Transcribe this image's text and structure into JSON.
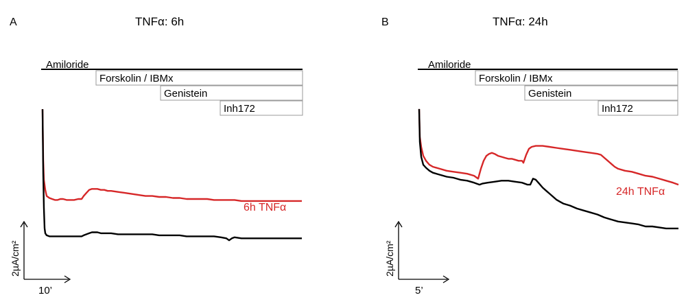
{
  "panels": [
    {
      "letter": "A",
      "title": "TNFα: 6h",
      "drugs": [
        "Amiloride",
        "Forskolin / IBMx",
        "Genistein",
        "Inh172"
      ],
      "scale": {
        "x_label": "10’",
        "y_label": "2µA/cm²"
      }
    },
    {
      "letter": "B",
      "title": "TNFα: 24h",
      "drugs": [
        "Amiloride",
        "Forskolin / IBMx",
        "Genistein",
        "Inh172"
      ],
      "scale": {
        "x_label": "5’",
        "y_label": "2µA/cm²"
      }
    }
  ],
  "colors": {
    "treated": "#d62728",
    "control": "#000000"
  },
  "chart_data": [
    {
      "type": "line",
      "title": "TNFα: 6h",
      "series": [
        {
          "name": "6h TNFα",
          "color": "#d62728",
          "points": [
            [
              0,
              138
            ],
            [
              1,
              87
            ],
            [
              2,
              68
            ],
            [
              4,
              58
            ],
            [
              6,
              52
            ],
            [
              10,
              50
            ],
            [
              14,
              49
            ],
            [
              18,
              48
            ],
            [
              22,
              48
            ],
            [
              26,
              49
            ],
            [
              30,
              49
            ],
            [
              35,
              48
            ],
            [
              40,
              48
            ],
            [
              46,
              48
            ],
            [
              52,
              49
            ],
            [
              57,
              49
            ],
            [
              60,
              52
            ],
            [
              64,
              55
            ],
            [
              68,
              58
            ],
            [
              72,
              59
            ],
            [
              76,
              59
            ],
            [
              80,
              59
            ],
            [
              85,
              58
            ],
            [
              90,
              58
            ],
            [
              95,
              57
            ],
            [
              100,
              57
            ],
            [
              110,
              56
            ],
            [
              120,
              55
            ],
            [
              130,
              54
            ],
            [
              140,
              53
            ],
            [
              150,
              52
            ],
            [
              160,
              52
            ],
            [
              170,
              51
            ],
            [
              180,
              51
            ],
            [
              190,
              50
            ],
            [
              200,
              50
            ],
            [
              210,
              49
            ],
            [
              220,
              49
            ],
            [
              230,
              49
            ],
            [
              240,
              49
            ],
            [
              250,
              48
            ],
            [
              260,
              48
            ],
            [
              270,
              48
            ],
            [
              280,
              48
            ],
            [
              290,
              47
            ],
            [
              300,
              47
            ],
            [
              310,
              47
            ],
            [
              320,
              47
            ],
            [
              330,
              47
            ],
            [
              340,
              47
            ],
            [
              350,
              47
            ],
            [
              360,
              47
            ],
            [
              370,
              47
            ],
            [
              378,
              47
            ]
          ]
        },
        {
          "name": "",
          "color": "#000000",
          "points": [
            [
              0,
              138
            ],
            [
              1,
              75
            ],
            [
              2,
              40
            ],
            [
              3,
              20
            ],
            [
              4,
              15
            ],
            [
              6,
              13
            ],
            [
              10,
              12
            ],
            [
              14,
              12
            ],
            [
              18,
              12
            ],
            [
              22,
              12
            ],
            [
              26,
              12
            ],
            [
              30,
              12
            ],
            [
              35,
              12
            ],
            [
              40,
              12
            ],
            [
              46,
              12
            ],
            [
              52,
              12
            ],
            [
              57,
              12
            ],
            [
              60,
              13
            ],
            [
              64,
              14
            ],
            [
              68,
              15
            ],
            [
              72,
              16
            ],
            [
              76,
              16
            ],
            [
              80,
              16
            ],
            [
              85,
              15
            ],
            [
              90,
              15
            ],
            [
              95,
              15
            ],
            [
              100,
              15
            ],
            [
              110,
              14
            ],
            [
              120,
              14
            ],
            [
              130,
              14
            ],
            [
              140,
              14
            ],
            [
              150,
              14
            ],
            [
              160,
              14
            ],
            [
              170,
              13
            ],
            [
              180,
              13
            ],
            [
              190,
              13
            ],
            [
              200,
              13
            ],
            [
              210,
              12
            ],
            [
              220,
              12
            ],
            [
              230,
              12
            ],
            [
              240,
              12
            ],
            [
              250,
              12
            ],
            [
              260,
              11
            ],
            [
              268,
              10
            ],
            [
              272,
              8
            ],
            [
              276,
              10
            ],
            [
              280,
              11
            ],
            [
              290,
              10
            ],
            [
              300,
              10
            ],
            [
              310,
              10
            ],
            [
              320,
              10
            ],
            [
              330,
              10
            ],
            [
              340,
              10
            ],
            [
              350,
              10
            ],
            [
              360,
              10
            ],
            [
              370,
              10
            ],
            [
              378,
              10
            ]
          ]
        }
      ],
      "annotations": [
        "6h TNFα"
      ]
    },
    {
      "type": "line",
      "title": "TNFα: 24h",
      "series": [
        {
          "name": "24h TNFα",
          "color": "#d62728",
          "points": [
            [
              0,
              158
            ],
            [
              1,
              130
            ],
            [
              3,
              120
            ],
            [
              6,
              111
            ],
            [
              10,
              106
            ],
            [
              15,
              102
            ],
            [
              20,
              100
            ],
            [
              30,
              98
            ],
            [
              40,
              96
            ],
            [
              50,
              95
            ],
            [
              60,
              94
            ],
            [
              70,
              93
            ],
            [
              80,
              91
            ],
            [
              86,
              88
            ],
            [
              90,
              98
            ],
            [
              94,
              106
            ],
            [
              98,
              111
            ],
            [
              102,
              113
            ],
            [
              106,
              114
            ],
            [
              110,
              113
            ],
            [
              115,
              111
            ],
            [
              120,
              110
            ],
            [
              125,
              109
            ],
            [
              130,
              108
            ],
            [
              135,
              108
            ],
            [
              140,
              107
            ],
            [
              145,
              106
            ],
            [
              150,
              106
            ],
            [
              152,
              104
            ],
            [
              156,
              112
            ],
            [
              160,
              118
            ],
            [
              164,
              120
            ],
            [
              170,
              121
            ],
            [
              180,
              121
            ],
            [
              190,
              120
            ],
            [
              200,
              119
            ],
            [
              210,
              118
            ],
            [
              220,
              117
            ],
            [
              230,
              116
            ],
            [
              240,
              115
            ],
            [
              250,
              114
            ],
            [
              260,
              113
            ],
            [
              265,
              112
            ],
            [
              270,
              109
            ],
            [
              275,
              106
            ],
            [
              280,
              103
            ],
            [
              285,
              100
            ],
            [
              290,
              98
            ],
            [
              300,
              96
            ],
            [
              310,
              95
            ],
            [
              320,
              93
            ],
            [
              330,
              91
            ],
            [
              340,
              90
            ],
            [
              350,
              88
            ],
            [
              360,
              86
            ],
            [
              370,
              84
            ],
            [
              378,
              82
            ]
          ]
        },
        {
          "name": "",
          "color": "#000000",
          "points": [
            [
              0,
              158
            ],
            [
              1,
              125
            ],
            [
              3,
              110
            ],
            [
              6,
              102
            ],
            [
              10,
              99
            ],
            [
              15,
              96
            ],
            [
              20,
              94
            ],
            [
              30,
              92
            ],
            [
              40,
              90
            ],
            [
              50,
              89
            ],
            [
              60,
              87
            ],
            [
              70,
              86
            ],
            [
              80,
              84
            ],
            [
              88,
              82
            ],
            [
              92,
              83
            ],
            [
              100,
              84
            ],
            [
              110,
              85
            ],
            [
              120,
              86
            ],
            [
              130,
              86
            ],
            [
              140,
              85
            ],
            [
              150,
              84
            ],
            [
              158,
              82
            ],
            [
              162,
              82
            ],
            [
              166,
              88
            ],
            [
              170,
              87
            ],
            [
              175,
              83
            ],
            [
              180,
              79
            ],
            [
              185,
              76
            ],
            [
              190,
              73
            ],
            [
              195,
              70
            ],
            [
              200,
              67
            ],
            [
              205,
              65
            ],
            [
              210,
              63
            ],
            [
              220,
              61
            ],
            [
              230,
              58
            ],
            [
              240,
              56
            ],
            [
              250,
              54
            ],
            [
              260,
              52
            ],
            [
              270,
              49
            ],
            [
              280,
              47
            ],
            [
              290,
              45
            ],
            [
              300,
              44
            ],
            [
              310,
              43
            ],
            [
              320,
              42
            ],
            [
              330,
              40
            ],
            [
              340,
              40
            ],
            [
              350,
              39
            ],
            [
              360,
              38
            ],
            [
              370,
              38
            ],
            [
              378,
              38
            ]
          ]
        }
      ],
      "annotations": [
        "24h TNFα"
      ]
    }
  ]
}
